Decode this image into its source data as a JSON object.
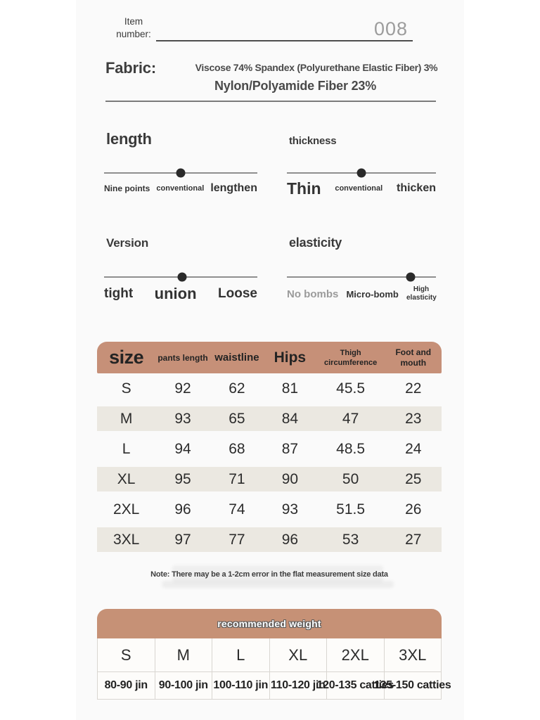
{
  "colors": {
    "accent_tan": "#c69078",
    "beige_row": "#ebe8e1",
    "panel_bg": "#fafafa",
    "text_dark": "#2c2c2c",
    "muted_gray": "#9c9c9c"
  },
  "header": {
    "item_label_line1": "Item",
    "item_label_line2": "number:",
    "item_value": "008",
    "fabric_label": "Fabric:",
    "fabric_line1": "Viscose 74% Spandex (Polyurethane Elastic Fiber) 3%",
    "fabric_line2": "Nylon/Polyamide Fiber 23%"
  },
  "sliders": {
    "length": {
      "title": "length",
      "start": "Nine points",
      "mid": "conventional",
      "end": "lengthen",
      "position_pct": 50
    },
    "thickness": {
      "title": "thickness",
      "start": "Thin",
      "mid": "conventional",
      "end": "thicken",
      "position_pct": 50
    },
    "version": {
      "title": "Version",
      "start": "tight",
      "mid": "union",
      "end": "Loose",
      "position_pct": 51
    },
    "elasticity": {
      "title": "elasticity",
      "start": "No bombs",
      "mid": "Micro-bomb",
      "end": "High elasticity",
      "position_pct": 83
    }
  },
  "size_table": {
    "headers": [
      "size",
      "pants length",
      "waistline",
      "Hips",
      "Thigh circumference",
      "Foot and mouth"
    ],
    "rows": [
      [
        "S",
        "92",
        "62",
        "81",
        "45.5",
        "22"
      ],
      [
        "M",
        "93",
        "65",
        "84",
        "47",
        "23"
      ],
      [
        "L",
        "94",
        "68",
        "87",
        "48.5",
        "24"
      ],
      [
        "XL",
        "95",
        "71",
        "90",
        "50",
        "25"
      ],
      [
        "2XL",
        "96",
        "74",
        "93",
        "51.5",
        "26"
      ],
      [
        "3XL",
        "97",
        "77",
        "96",
        "53",
        "27"
      ]
    ],
    "note": "Note: There may be a 1-2cm error in the flat measurement size data"
  },
  "weight_table": {
    "title": "recommended weight",
    "sizes": [
      "S",
      "M",
      "L",
      "XL",
      "2XL",
      "3XL"
    ],
    "weights": [
      "80-90 jin",
      "90-100 jin",
      "100-110 jin",
      "110-120 jin",
      "120-135 catties",
      "135-150 catties"
    ]
  }
}
